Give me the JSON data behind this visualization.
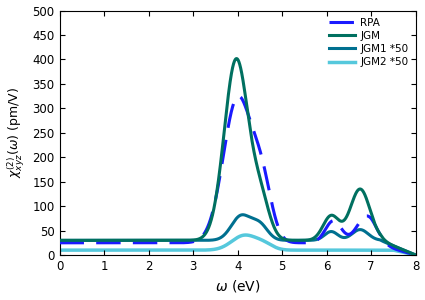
{
  "xlabel": "$\\omega$ (eV)",
  "ylabel": "$\\chi^{(2)}_{xyz}(\\omega)$ (pm/V)",
  "xlim": [
    0,
    8
  ],
  "ylim": [
    0,
    500
  ],
  "yticks": [
    0,
    50,
    100,
    150,
    200,
    250,
    300,
    350,
    400,
    450,
    500
  ],
  "xticks": [
    0,
    1,
    2,
    3,
    4,
    5,
    6,
    7,
    8
  ],
  "colors": {
    "RPA": "#1a1aff",
    "JGM": "#007060",
    "JGM1": "#007090",
    "JGM2": "#55c8dc"
  },
  "legend_labels": [
    "RPA",
    "JGM",
    "JGM1 *50",
    "JGM2 *50"
  ],
  "background_color": "#ffffff"
}
